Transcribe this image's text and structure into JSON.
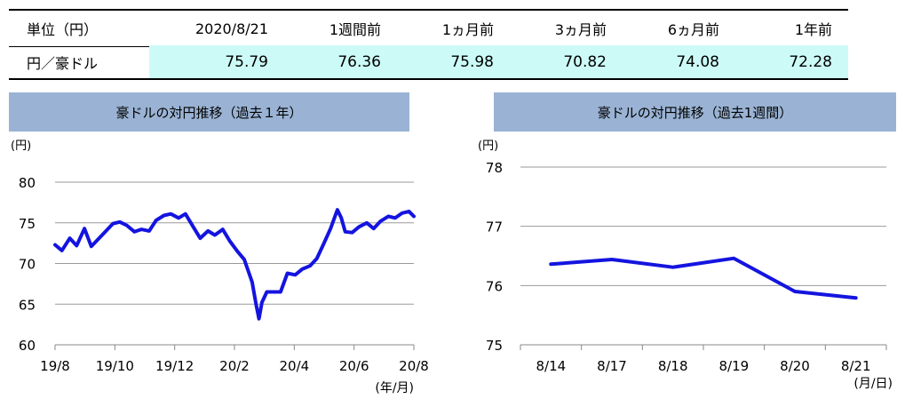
{
  "rate_table": {
    "headers": [
      "単位（円）",
      "2020/8/21",
      "1週間前",
      "1ヵ月前",
      "3ヵ月前",
      "6ヵ月前",
      "1年前"
    ],
    "row_label": "円／豪ドル",
    "values": [
      "75.79",
      "76.36",
      "75.98",
      "70.82",
      "74.08",
      "72.28"
    ]
  },
  "chart_data": [
    {
      "type": "line",
      "title": "豪ドルの対円推移（過去１年）",
      "unit_label": "(円)",
      "x_unit_label": "(年/月)",
      "x_ticks": [
        "19/8",
        "19/10",
        "19/12",
        "20/2",
        "20/4",
        "20/6",
        "20/8"
      ],
      "ylim": [
        60,
        80
      ],
      "y_ticks": [
        60,
        65,
        70,
        75,
        80
      ],
      "grid": true,
      "color": "#1414e0",
      "x": [
        "2019-08-21",
        "2019-08-28",
        "2019-09-05",
        "2019-09-12",
        "2019-09-20",
        "2019-09-27",
        "2019-10-04",
        "2019-10-12",
        "2019-10-19",
        "2019-10-26",
        "2019-11-02",
        "2019-11-10",
        "2019-11-17",
        "2019-11-25",
        "2019-12-02",
        "2019-12-10",
        "2019-12-17",
        "2019-12-25",
        "2020-01-01",
        "2020-01-09",
        "2020-01-16",
        "2020-01-24",
        "2020-01-31",
        "2020-02-08",
        "2020-02-15",
        "2020-02-23",
        "2020-03-01",
        "2020-03-09",
        "2020-03-13",
        "2020-03-16",
        "2020-03-19",
        "2020-03-24",
        "2020-03-31",
        "2020-04-07",
        "2020-04-14",
        "2020-04-22",
        "2020-04-29",
        "2020-05-07",
        "2020-05-14",
        "2020-05-21",
        "2020-05-28",
        "2020-06-04",
        "2020-06-08",
        "2020-06-12",
        "2020-06-19",
        "2020-06-26",
        "2020-07-04",
        "2020-07-11",
        "2020-07-18",
        "2020-07-26",
        "2020-08-02",
        "2020-08-09",
        "2020-08-16",
        "2020-08-21"
      ],
      "values": [
        72.3,
        71.6,
        73.1,
        72.2,
        74.3,
        72.1,
        73.0,
        74.0,
        74.9,
        75.1,
        74.7,
        73.9,
        74.2,
        74.0,
        75.3,
        75.9,
        76.1,
        75.6,
        76.1,
        74.5,
        73.1,
        74.0,
        73.5,
        74.2,
        72.8,
        71.5,
        70.5,
        67.7,
        65.0,
        63.2,
        65.2,
        66.5,
        66.5,
        66.5,
        68.8,
        68.6,
        69.3,
        69.7,
        70.6,
        72.4,
        74.3,
        76.6,
        75.6,
        73.9,
        73.8,
        74.5,
        75.0,
        74.3,
        75.2,
        75.8,
        75.6,
        76.2,
        76.4,
        75.8
      ]
    },
    {
      "type": "line",
      "title": "豪ドルの対円推移（過去1週間）",
      "unit_label": "(円)",
      "x_unit_label": "(月/日)",
      "categories": [
        "8/14",
        "8/17",
        "8/18",
        "8/19",
        "8/20",
        "8/21"
      ],
      "values": [
        76.36,
        76.44,
        76.31,
        76.46,
        75.9,
        75.79
      ],
      "ylim": [
        75,
        78
      ],
      "y_ticks": [
        75,
        76,
        77,
        78
      ],
      "grid": true,
      "color": "#1414e0"
    }
  ]
}
